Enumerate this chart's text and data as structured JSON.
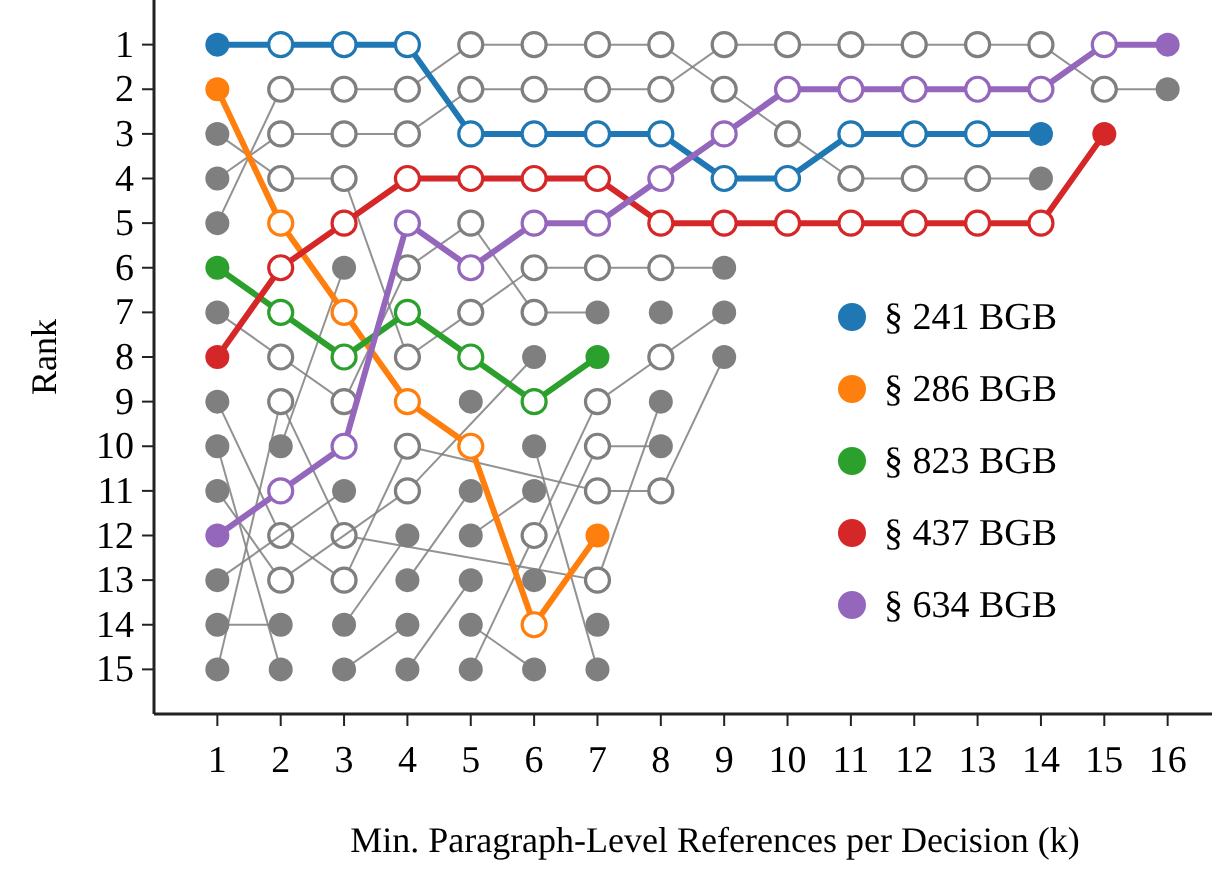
{
  "chart_data": {
    "type": "line",
    "xlabel": "Min. Paragraph-Level References per Decision (k)",
    "ylabel": "Rank",
    "xlim": [
      0,
      16.7
    ],
    "xticks": [
      1,
      2,
      3,
      4,
      5,
      6,
      7,
      8,
      9,
      10,
      11,
      12,
      13,
      14,
      15,
      16
    ],
    "ylim": [
      16,
      0
    ],
    "yticks": [
      1,
      2,
      3,
      4,
      5,
      6,
      7,
      8,
      9,
      10,
      11,
      12,
      13,
      14,
      15
    ],
    "grid": false,
    "legend": "right",
    "marker": "circle",
    "line_style": "solid",
    "series": [
      {
        "color": "#7f7f7f",
        "x": [
          1,
          2,
          3,
          4,
          5,
          6,
          7,
          8,
          9,
          10,
          11,
          12,
          13,
          14
        ],
        "values": [
          5,
          2,
          2,
          2,
          1,
          1,
          1,
          1,
          2,
          3,
          4,
          4,
          4,
          4
        ]
      },
      {
        "color": "#7f7f7f",
        "x": [
          1,
          2,
          3,
          4,
          5,
          6,
          7,
          8,
          9,
          10,
          11,
          12,
          13,
          14,
          15,
          16
        ],
        "values": [
          4,
          3,
          3,
          3,
          2,
          2,
          2,
          2,
          1,
          1,
          1,
          1,
          1,
          1,
          2,
          2
        ]
      },
      {
        "color": "#7f7f7f",
        "x": [
          1,
          2,
          3,
          4,
          5,
          6,
          7,
          8,
          9
        ],
        "values": [
          3,
          4,
          4,
          8,
          7,
          6,
          6,
          6,
          6
        ]
      },
      {
        "color": "#7f7f7f",
        "x": [
          1,
          2,
          3,
          4,
          5,
          6,
          7
        ],
        "values": [
          7,
          8,
          9,
          6,
          5,
          7,
          7
        ]
      },
      {
        "color": "#7f7f7f",
        "x": [
          1,
          2,
          3,
          7,
          8
        ],
        "values": [
          15,
          9,
          12,
          13,
          9
        ]
      },
      {
        "color": "#7f7f7f",
        "x": [
          1,
          2,
          3,
          4,
          7,
          8,
          9
        ],
        "values": [
          9,
          12,
          13,
          10,
          11,
          11,
          8
        ]
      },
      {
        "color": "#7f7f7f",
        "x": [
          1,
          2,
          4,
          6
        ],
        "values": [
          11,
          13,
          11,
          8
        ]
      },
      {
        "color": "#7f7f7f",
        "x": [
          5,
          6,
          7,
          8,
          9
        ],
        "values": [
          15,
          12,
          9,
          8,
          7
        ]
      },
      {
        "color": "#7f7f7f",
        "x": [
          6,
          7,
          8
        ],
        "values": [
          13,
          10,
          10
        ]
      },
      {
        "color": "#7f7f7f",
        "x": [
          1,
          2
        ],
        "values": [
          10,
          15
        ]
      },
      {
        "color": "#7f7f7f",
        "x": [
          2,
          3
        ],
        "values": [
          10,
          6
        ]
      },
      {
        "color": "#7f7f7f",
        "x": [
          1,
          2
        ],
        "values": [
          14,
          14
        ]
      },
      {
        "color": "#7f7f7f",
        "x": [
          1,
          3
        ],
        "values": [
          13,
          11
        ]
      },
      {
        "color": "#7f7f7f",
        "x": [
          3,
          4
        ],
        "values": [
          14,
          12
        ]
      },
      {
        "color": "#7f7f7f",
        "x": [
          4,
          5
        ],
        "values": [
          13,
          11
        ]
      },
      {
        "color": "#7f7f7f",
        "x": [
          5,
          6
        ],
        "values": [
          12,
          11
        ]
      },
      {
        "color": "#7f7f7f",
        "x": [
          6,
          7
        ],
        "values": [
          10,
          15
        ]
      },
      {
        "color": "#7f7f7f",
        "x": [
          3,
          4
        ],
        "values": [
          15,
          14
        ]
      },
      {
        "color": "#7f7f7f",
        "x": [
          4,
          5
        ],
        "values": [
          15,
          13
        ]
      },
      {
        "color": "#7f7f7f",
        "x": [
          5,
          6
        ],
        "values": [
          14,
          15
        ]
      },
      {
        "color": "#7f7f7f",
        "x": [
          5
        ],
        "values": [
          9
        ]
      },
      {
        "color": "#7f7f7f",
        "x": [
          7
        ],
        "values": [
          14
        ]
      },
      {
        "color": "#7f7f7f",
        "x": [
          8
        ],
        "values": [
          7
        ]
      },
      {
        "name": "§ 241 BGB",
        "color": "#1f77b4",
        "x": [
          1,
          2,
          3,
          4,
          5,
          6,
          7,
          8,
          9,
          10,
          11,
          12,
          13,
          14
        ],
        "values": [
          1,
          1,
          1,
          1,
          3,
          3,
          3,
          3,
          4,
          4,
          3,
          3,
          3,
          3
        ]
      },
      {
        "name": "§ 286 BGB",
        "color": "#ff7f0e",
        "x": [
          1,
          2,
          3,
          4,
          5,
          6,
          7
        ],
        "values": [
          2,
          5,
          7,
          9,
          10,
          14,
          12
        ]
      },
      {
        "name": "§ 823 BGB",
        "color": "#2ca02c",
        "x": [
          1,
          2,
          3,
          4,
          5,
          6,
          7
        ],
        "values": [
          6,
          7,
          8,
          7,
          8,
          9,
          8
        ]
      },
      {
        "name": "§ 437 BGB",
        "color": "#d62728",
        "x": [
          1,
          2,
          3,
          4,
          5,
          6,
          7,
          8,
          9,
          10,
          11,
          12,
          13,
          14,
          15
        ],
        "values": [
          8,
          6,
          5,
          4,
          4,
          4,
          4,
          5,
          5,
          5,
          5,
          5,
          5,
          5,
          3
        ]
      },
      {
        "name": "§ 634 BGB",
        "color": "#9467bd",
        "x": [
          1,
          2,
          3,
          4,
          5,
          6,
          7,
          8,
          9,
          10,
          11,
          12,
          13,
          14,
          15,
          16
        ],
        "values": [
          12,
          11,
          10,
          5,
          6,
          5,
          5,
          4,
          3,
          2,
          2,
          2,
          2,
          2,
          1,
          1
        ]
      }
    ]
  }
}
